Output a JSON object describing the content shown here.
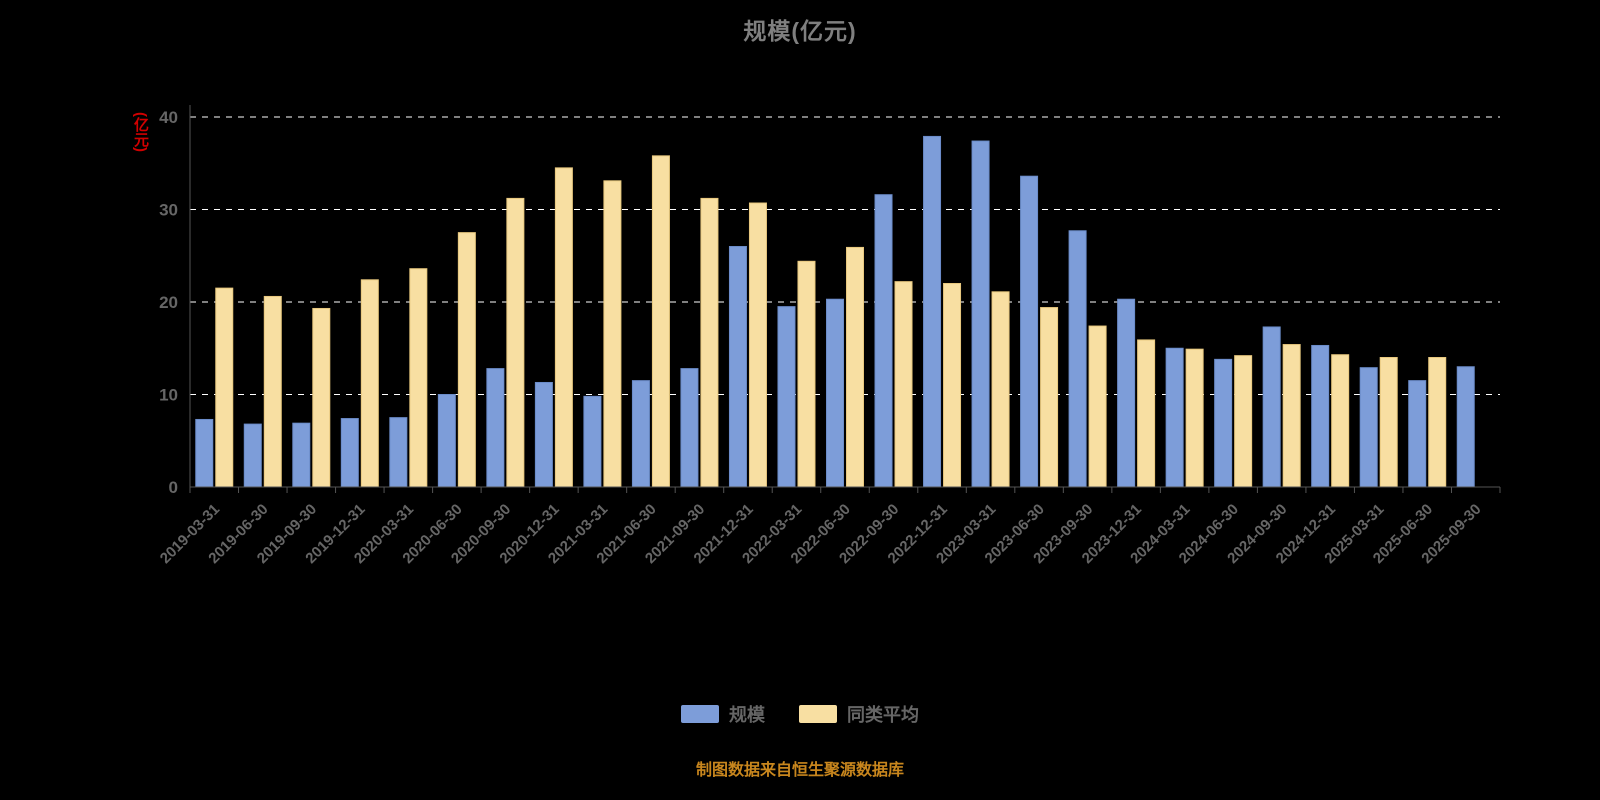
{
  "title": "规模(亿元)",
  "y_axis_unit_label": "(亿元)",
  "footer": "制图数据来自恒生聚源数据库",
  "legend": [
    {
      "label": "规模",
      "color": "#7d9dd9"
    },
    {
      "label": "同类平均",
      "color": "#f8dfa2"
    }
  ],
  "colors": {
    "background": "#000000",
    "grid": "#ffffff",
    "axis_text": "#666666",
    "title_text": "#7f7f7f",
    "unit_label": "#d10000",
    "footer_text": "#c8861d"
  },
  "chart_data": {
    "type": "bar",
    "title": "规模(亿元)",
    "ylabel": "(亿元)",
    "ylim": [
      0,
      40
    ],
    "yticks": [
      0,
      10,
      20,
      30,
      40
    ],
    "grid": "horizontal-dashed",
    "legend_position": "bottom",
    "categories": [
      "2019-03-31",
      "2019-06-30",
      "2019-09-30",
      "2019-12-31",
      "2020-03-31",
      "2020-06-30",
      "2020-09-30",
      "2020-12-31",
      "2021-03-31",
      "2021-06-30",
      "2021-09-30",
      "2021-12-31",
      "2022-03-31",
      "2022-06-30",
      "2022-09-30",
      "2022-12-31",
      "2023-03-31",
      "2023-06-30",
      "2023-09-30",
      "2023-12-31",
      "2024-03-31",
      "2024-06-30",
      "2024-09-30",
      "2024-12-31",
      "2025-03-31",
      "2025-06-30",
      "2025-09-30"
    ],
    "series": [
      {
        "name": "规模",
        "color": "#7d9dd9",
        "border_color": "#6b8cc9",
        "values": [
          7.3,
          6.8,
          6.9,
          7.4,
          7.5,
          10.0,
          12.8,
          11.3,
          9.8,
          11.5,
          12.8,
          26.0,
          19.5,
          20.3,
          31.6,
          37.9,
          37.4,
          33.6,
          27.7,
          20.3,
          15.0,
          13.8,
          17.3,
          15.3,
          12.9,
          11.5,
          13.0
        ]
      },
      {
        "name": "同类平均",
        "color": "#f8dfa2",
        "border_color": "#e8c87e",
        "values": [
          21.5,
          20.6,
          19.3,
          22.4,
          23.6,
          27.5,
          31.2,
          34.5,
          33.1,
          35.8,
          31.2,
          30.7,
          24.4,
          25.9,
          22.2,
          22.0,
          21.1,
          19.4,
          17.4,
          15.9,
          14.9,
          14.2,
          15.4,
          14.3,
          14.0,
          14.0,
          null
        ]
      }
    ]
  }
}
